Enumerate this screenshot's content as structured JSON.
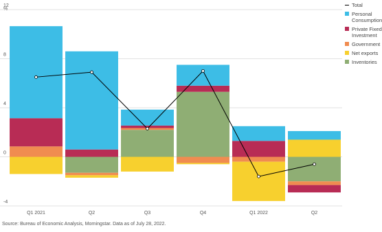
{
  "chart_data": {
    "type": "stacked-bar",
    "categories": [
      "Q1 2021",
      "Q2",
      "Q3",
      "Q4",
      "Q1 2022",
      "Q2"
    ],
    "y_unit": "%",
    "ylim": [
      -4,
      12
    ],
    "yticks": [
      -4,
      0,
      4,
      8,
      12
    ],
    "grid": true,
    "legend": "right",
    "series": [
      {
        "name": "Total",
        "type": "line",
        "color": "#000000",
        "values": [
          6.5,
          6.9,
          2.3,
          7.0,
          -1.6,
          -0.6
        ]
      },
      {
        "name": "Personal Consumption",
        "color": "#3dbde6",
        "values": [
          7.5,
          8.0,
          1.3,
          1.7,
          1.2,
          0.7
        ]
      },
      {
        "name": "Private Fixed Investment",
        "color": "#b82c55",
        "values": [
          2.3,
          0.6,
          0.2,
          0.5,
          1.3,
          -0.6
        ]
      },
      {
        "name": "Government",
        "color": "#f08c50",
        "values": [
          0.85,
          -0.2,
          0.15,
          -0.5,
          -0.4,
          -0.3
        ]
      },
      {
        "name": "Net exports",
        "color": "#f7d02e",
        "values": [
          -1.4,
          -0.2,
          -1.2,
          -0.1,
          -3.2,
          1.4
        ]
      },
      {
        "name": "Inventories",
        "color": "#8fae74",
        "values": [
          0,
          -1.3,
          2.2,
          5.3,
          0,
          -2.0
        ]
      }
    ],
    "source": "Source: Bureau of Economic Analysis, Morningstar. Data as of July 28, 2022."
  }
}
